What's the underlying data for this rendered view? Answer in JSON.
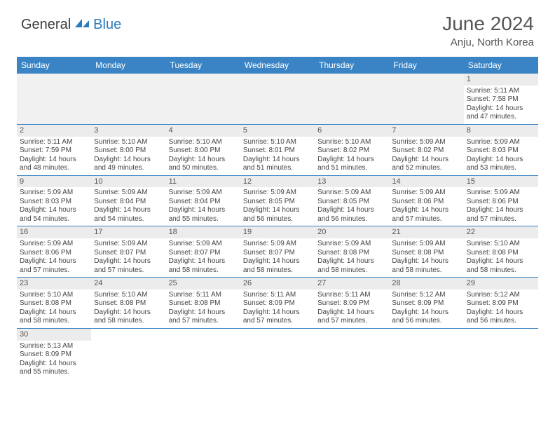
{
  "logo": {
    "general": "General",
    "blue": "Blue"
  },
  "title": "June 2024",
  "location": "Anju, North Korea",
  "colors": {
    "header_bg": "#3a84c5",
    "header_text": "#ffffff",
    "daynum_bg": "#ececec",
    "cell_border": "#3a84c5",
    "text": "#444444",
    "title_color": "#555555",
    "logo_blue": "#2b7bba"
  },
  "day_headers": [
    "Sunday",
    "Monday",
    "Tuesday",
    "Wednesday",
    "Thursday",
    "Friday",
    "Saturday"
  ],
  "weeks": [
    [
      null,
      null,
      null,
      null,
      null,
      null,
      {
        "d": "1",
        "sunrise": "5:11 AM",
        "sunset": "7:58 PM",
        "daylight": "14 hours and 47 minutes."
      }
    ],
    [
      {
        "d": "2",
        "sunrise": "5:11 AM",
        "sunset": "7:59 PM",
        "daylight": "14 hours and 48 minutes."
      },
      {
        "d": "3",
        "sunrise": "5:10 AM",
        "sunset": "8:00 PM",
        "daylight": "14 hours and 49 minutes."
      },
      {
        "d": "4",
        "sunrise": "5:10 AM",
        "sunset": "8:00 PM",
        "daylight": "14 hours and 50 minutes."
      },
      {
        "d": "5",
        "sunrise": "5:10 AM",
        "sunset": "8:01 PM",
        "daylight": "14 hours and 51 minutes."
      },
      {
        "d": "6",
        "sunrise": "5:10 AM",
        "sunset": "8:02 PM",
        "daylight": "14 hours and 51 minutes."
      },
      {
        "d": "7",
        "sunrise": "5:09 AM",
        "sunset": "8:02 PM",
        "daylight": "14 hours and 52 minutes."
      },
      {
        "d": "8",
        "sunrise": "5:09 AM",
        "sunset": "8:03 PM",
        "daylight": "14 hours and 53 minutes."
      }
    ],
    [
      {
        "d": "9",
        "sunrise": "5:09 AM",
        "sunset": "8:03 PM",
        "daylight": "14 hours and 54 minutes."
      },
      {
        "d": "10",
        "sunrise": "5:09 AM",
        "sunset": "8:04 PM",
        "daylight": "14 hours and 54 minutes."
      },
      {
        "d": "11",
        "sunrise": "5:09 AM",
        "sunset": "8:04 PM",
        "daylight": "14 hours and 55 minutes."
      },
      {
        "d": "12",
        "sunrise": "5:09 AM",
        "sunset": "8:05 PM",
        "daylight": "14 hours and 56 minutes."
      },
      {
        "d": "13",
        "sunrise": "5:09 AM",
        "sunset": "8:05 PM",
        "daylight": "14 hours and 56 minutes."
      },
      {
        "d": "14",
        "sunrise": "5:09 AM",
        "sunset": "8:06 PM",
        "daylight": "14 hours and 57 minutes."
      },
      {
        "d": "15",
        "sunrise": "5:09 AM",
        "sunset": "8:06 PM",
        "daylight": "14 hours and 57 minutes."
      }
    ],
    [
      {
        "d": "16",
        "sunrise": "5:09 AM",
        "sunset": "8:06 PM",
        "daylight": "14 hours and 57 minutes."
      },
      {
        "d": "17",
        "sunrise": "5:09 AM",
        "sunset": "8:07 PM",
        "daylight": "14 hours and 57 minutes."
      },
      {
        "d": "18",
        "sunrise": "5:09 AM",
        "sunset": "8:07 PM",
        "daylight": "14 hours and 58 minutes."
      },
      {
        "d": "19",
        "sunrise": "5:09 AM",
        "sunset": "8:07 PM",
        "daylight": "14 hours and 58 minutes."
      },
      {
        "d": "20",
        "sunrise": "5:09 AM",
        "sunset": "8:08 PM",
        "daylight": "14 hours and 58 minutes."
      },
      {
        "d": "21",
        "sunrise": "5:09 AM",
        "sunset": "8:08 PM",
        "daylight": "14 hours and 58 minutes."
      },
      {
        "d": "22",
        "sunrise": "5:10 AM",
        "sunset": "8:08 PM",
        "daylight": "14 hours and 58 minutes."
      }
    ],
    [
      {
        "d": "23",
        "sunrise": "5:10 AM",
        "sunset": "8:08 PM",
        "daylight": "14 hours and 58 minutes."
      },
      {
        "d": "24",
        "sunrise": "5:10 AM",
        "sunset": "8:08 PM",
        "daylight": "14 hours and 58 minutes."
      },
      {
        "d": "25",
        "sunrise": "5:11 AM",
        "sunset": "8:08 PM",
        "daylight": "14 hours and 57 minutes."
      },
      {
        "d": "26",
        "sunrise": "5:11 AM",
        "sunset": "8:09 PM",
        "daylight": "14 hours and 57 minutes."
      },
      {
        "d": "27",
        "sunrise": "5:11 AM",
        "sunset": "8:09 PM",
        "daylight": "14 hours and 57 minutes."
      },
      {
        "d": "28",
        "sunrise": "5:12 AM",
        "sunset": "8:09 PM",
        "daylight": "14 hours and 56 minutes."
      },
      {
        "d": "29",
        "sunrise": "5:12 AM",
        "sunset": "8:09 PM",
        "daylight": "14 hours and 56 minutes."
      }
    ],
    [
      {
        "d": "30",
        "sunrise": "5:13 AM",
        "sunset": "8:09 PM",
        "daylight": "14 hours and 55 minutes."
      },
      null,
      null,
      null,
      null,
      null,
      null
    ]
  ],
  "labels": {
    "sunrise": "Sunrise:",
    "sunset": "Sunset:",
    "daylight": "Daylight:"
  }
}
